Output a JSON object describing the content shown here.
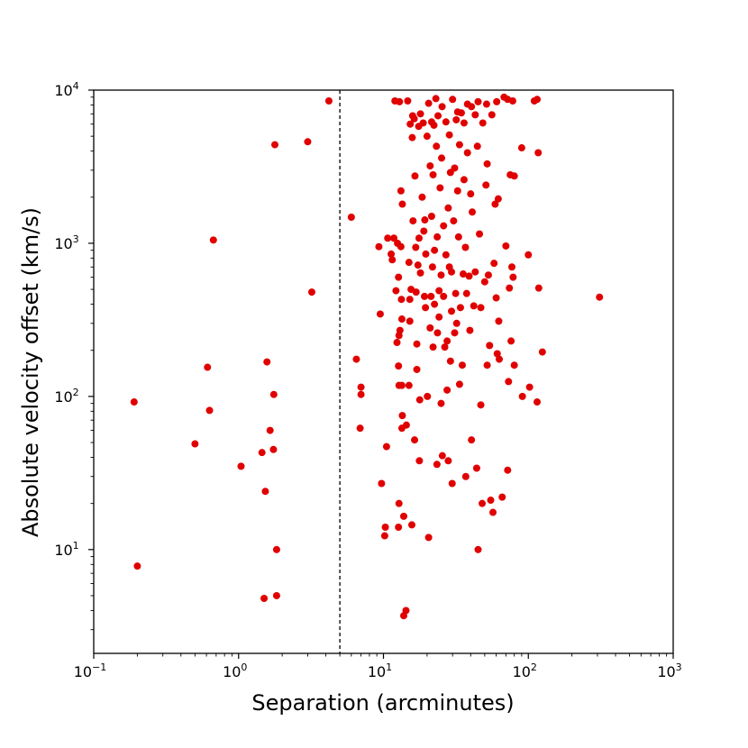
{
  "chart_data": {
    "type": "scatter",
    "title": "",
    "xlabel": "Separation (arcminutes)",
    "ylabel": "Absolute velocity offset (km/s)",
    "xscale": "log",
    "yscale": "log",
    "xlim": [
      0.1,
      1000
    ],
    "ylim": [
      2.1,
      10000
    ],
    "x_tick_labels": [
      {
        "base": "10",
        "exp": "−1"
      },
      {
        "base": "10",
        "exp": "0"
      },
      {
        "base": "10",
        "exp": "1"
      },
      {
        "base": "10",
        "exp": "2"
      },
      {
        "base": "10",
        "exp": "3"
      }
    ],
    "y_tick_labels": [
      {
        "base": "10",
        "exp": "1"
      },
      {
        "base": "10",
        "exp": "2"
      },
      {
        "base": "10",
        "exp": "3"
      },
      {
        "base": "10",
        "exp": "4"
      }
    ],
    "reference_line": {
      "x": 5,
      "style": "dashed",
      "color": "#000000"
    },
    "marker_color": "#e00000",
    "grid": false,
    "points": [
      [
        0.19,
        92
      ],
      [
        0.2,
        7.8
      ],
      [
        0.5,
        49
      ],
      [
        0.61,
        155
      ],
      [
        0.63,
        81
      ],
      [
        0.67,
        1050
      ],
      [
        1.04,
        35
      ],
      [
        1.45,
        43
      ],
      [
        1.5,
        4.8
      ],
      [
        1.53,
        24
      ],
      [
        1.57,
        168
      ],
      [
        1.65,
        60
      ],
      [
        1.74,
        45
      ],
      [
        1.75,
        103
      ],
      [
        1.78,
        4400
      ],
      [
        1.83,
        10
      ],
      [
        1.83,
        5.0
      ],
      [
        3.0,
        4600
      ],
      [
        3.2,
        480
      ],
      [
        4.2,
        8500
      ],
      [
        6.0,
        1480
      ],
      [
        6.5,
        175
      ],
      [
        6.9,
        62
      ],
      [
        7.0,
        115
      ],
      [
        7.0,
        103
      ],
      [
        9.3,
        950
      ],
      [
        9.5,
        345
      ],
      [
        9.7,
        27
      ],
      [
        10.2,
        12.3
      ],
      [
        10.5,
        47
      ],
      [
        10.3,
        14
      ],
      [
        10.7,
        1080
      ],
      [
        11.3,
        850
      ],
      [
        11.5,
        780
      ],
      [
        12.0,
        8500
      ],
      [
        11.8,
        1080
      ],
      [
        12.2,
        490
      ],
      [
        12.5,
        1000
      ],
      [
        12.4,
        225
      ],
      [
        12.7,
        600
      ],
      [
        12.7,
        158
      ],
      [
        12.8,
        118
      ],
      [
        12.8,
        250
      ],
      [
        12.7,
        14
      ],
      [
        12.8,
        20
      ],
      [
        12.9,
        8400
      ],
      [
        13.2,
        2200
      ],
      [
        13.0,
        270
      ],
      [
        13.2,
        950
      ],
      [
        13.3,
        430
      ],
      [
        13.4,
        320
      ],
      [
        13.4,
        118
      ],
      [
        13.4,
        62
      ],
      [
        13.5,
        75
      ],
      [
        13.5,
        1800
      ],
      [
        13.8,
        16.5
      ],
      [
        13.8,
        3.7
      ],
      [
        14.3,
        4.0
      ],
      [
        14.4,
        65
      ],
      [
        14.7,
        8500
      ],
      [
        15.0,
        750
      ],
      [
        15.2,
        430
      ],
      [
        15.3,
        6000
      ],
      [
        15.5,
        500
      ],
      [
        15.2,
        310
      ],
      [
        15.0,
        118
      ],
      [
        15.8,
        4900
      ],
      [
        15.9,
        6800
      ],
      [
        15.7,
        14.5
      ],
      [
        16.0,
        1400
      ],
      [
        16.4,
        52
      ],
      [
        16.3,
        6500
      ],
      [
        16.5,
        2750
      ],
      [
        16.7,
        940
      ],
      [
        17.0,
        150
      ],
      [
        16.8,
        480
      ],
      [
        17.0,
        220
      ],
      [
        17.5,
        5800
      ],
      [
        17.3,
        720
      ],
      [
        17.6,
        1080
      ],
      [
        17.7,
        38
      ],
      [
        17.8,
        95
      ],
      [
        18.0,
        7000
      ],
      [
        18.0,
        640
      ],
      [
        18.5,
        2000
      ],
      [
        18.8,
        6100
      ],
      [
        19.0,
        1200
      ],
      [
        19.3,
        1420
      ],
      [
        19.5,
        380
      ],
      [
        19.2,
        450
      ],
      [
        19.6,
        850
      ],
      [
        20.5,
        12
      ],
      [
        20.0,
        5000
      ],
      [
        20.1,
        100
      ],
      [
        20.5,
        8200
      ],
      [
        21.0,
        3200
      ],
      [
        21.0,
        280
      ],
      [
        21.5,
        6200
      ],
      [
        21.3,
        450
      ],
      [
        21.5,
        1500
      ],
      [
        21.8,
        700
      ],
      [
        22.0,
        2800
      ],
      [
        22.0,
        210
      ],
      [
        22.3,
        5900
      ],
      [
        22.5,
        900
      ],
      [
        22.5,
        400
      ],
      [
        23.0,
        8800
      ],
      [
        23.2,
        4300
      ],
      [
        23.5,
        1100
      ],
      [
        23.6,
        260
      ],
      [
        23.4,
        36
      ],
      [
        23.8,
        6800
      ],
      [
        24.2,
        330
      ],
      [
        24.2,
        490
      ],
      [
        24.6,
        2300
      ],
      [
        25.0,
        620
      ],
      [
        25.0,
        90
      ],
      [
        25.4,
        7800
      ],
      [
        25.5,
        41
      ],
      [
        25.2,
        3600
      ],
      [
        26.0,
        1300
      ],
      [
        26.0,
        450
      ],
      [
        26.5,
        210
      ],
      [
        27.0,
        6200
      ],
      [
        27.0,
        840
      ],
      [
        27.5,
        230
      ],
      [
        27.5,
        110
      ],
      [
        28.0,
        38
      ],
      [
        28.0,
        1700
      ],
      [
        28.5,
        700
      ],
      [
        28.5,
        5100
      ],
      [
        29.0,
        2900
      ],
      [
        29.0,
        170
      ],
      [
        29.5,
        360
      ],
      [
        29.5,
        650
      ],
      [
        29.8,
        27
      ],
      [
        30.0,
        8700
      ],
      [
        30.5,
        1400
      ],
      [
        31.0,
        3100
      ],
      [
        31.5,
        470
      ],
      [
        31.0,
        260
      ],
      [
        31.8,
        6400
      ],
      [
        32.0,
        300
      ],
      [
        32.5,
        7200
      ],
      [
        32.5,
        2200
      ],
      [
        33.0,
        1100
      ],
      [
        33.5,
        120
      ],
      [
        33.5,
        4400
      ],
      [
        34.0,
        380
      ],
      [
        34.5,
        7100
      ],
      [
        35.0,
        160
      ],
      [
        35.5,
        630
      ],
      [
        36.0,
        2600
      ],
      [
        36.0,
        6100
      ],
      [
        36.8,
        940
      ],
      [
        37.0,
        30
      ],
      [
        37.5,
        470
      ],
      [
        38.0,
        8100
      ],
      [
        38.0,
        3900
      ],
      [
        39.0,
        610
      ],
      [
        39.5,
        270
      ],
      [
        40.0,
        2100
      ],
      [
        40.5,
        7800
      ],
      [
        40.5,
        52
      ],
      [
        41.0,
        1600
      ],
      [
        42.0,
        390
      ],
      [
        43.0,
        6900
      ],
      [
        43.0,
        650
      ],
      [
        44.0,
        34
      ],
      [
        44.5,
        4300
      ],
      [
        45.0,
        10
      ],
      [
        45.0,
        8400
      ],
      [
        46.0,
        1150
      ],
      [
        47.0,
        380
      ],
      [
        47.0,
        88
      ],
      [
        48.0,
        20
      ],
      [
        48.5,
        6100
      ],
      [
        50.0,
        560
      ],
      [
        51.0,
        2400
      ],
      [
        51.5,
        8100
      ],
      [
        52.0,
        160
      ],
      [
        52.0,
        3300
      ],
      [
        53.0,
        620
      ],
      [
        54.0,
        215
      ],
      [
        55.0,
        21
      ],
      [
        56.0,
        6900
      ],
      [
        57.0,
        17.5
      ],
      [
        58.0,
        740
      ],
      [
        59.0,
        1800
      ],
      [
        60.0,
        440
      ],
      [
        60.5,
        8400
      ],
      [
        61.0,
        190
      ],
      [
        62.0,
        1950
      ],
      [
        62.5,
        310
      ],
      [
        63.0,
        175
      ],
      [
        66.0,
        22
      ],
      [
        68.0,
        9000
      ],
      [
        70.0,
        960
      ],
      [
        72.0,
        33
      ],
      [
        72.0,
        8700
      ],
      [
        73.0,
        125
      ],
      [
        74.0,
        510
      ],
      [
        75.0,
        2800
      ],
      [
        76.0,
        230
      ],
      [
        77.0,
        700
      ],
      [
        78.0,
        8500
      ],
      [
        78.5,
        600
      ],
      [
        80.0,
        2750
      ],
      [
        80.0,
        160
      ],
      [
        90.0,
        4200
      ],
      [
        91.0,
        100
      ],
      [
        100.0,
        840
      ],
      [
        102.0,
        115
      ],
      [
        110.0,
        8500
      ],
      [
        115.0,
        8700
      ],
      [
        115.0,
        92
      ],
      [
        117.0,
        3900
      ],
      [
        118.0,
        510
      ],
      [
        125.0,
        195
      ],
      [
        310.0,
        445
      ]
    ]
  }
}
